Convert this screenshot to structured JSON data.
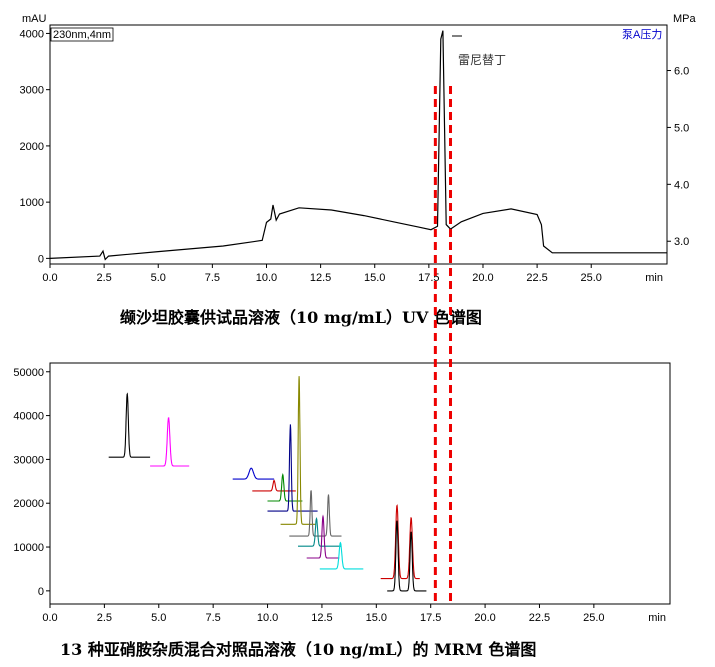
{
  "chart_data": [
    {
      "type": "line",
      "y_unit": "mAU",
      "y2_unit": "MPa",
      "x_unit": "min",
      "detector_label": "230nm,4nm",
      "pressure_label": "泵A压力",
      "peak_label": "雷尼替丁",
      "caption": "缬沙坦胶囊供试品溶液（10 mg/mL）UV 色谱图",
      "xlim": [
        0,
        28.5
      ],
      "ylim": [
        -100,
        4150
      ],
      "y2lim": [
        2.6,
        6.8
      ],
      "x_ticks": [
        "0.0",
        "2.5",
        "5.0",
        "7.5",
        "10.0",
        "12.5",
        "15.0",
        "17.5",
        "20.0",
        "22.5",
        "25.0"
      ],
      "y_ticks": [
        "0",
        "1000",
        "2000",
        "3000",
        "4000"
      ],
      "y2_ticks": [
        "3.0",
        "4.0",
        "5.0",
        "6.0"
      ],
      "series": [
        {
          "x": [
            0,
            2.3,
            2.45,
            2.55,
            2.7,
            5,
            8,
            9.8,
            10.0,
            10.2,
            10.3,
            10.45,
            10.6,
            11.5,
            13,
            14.5,
            16,
            17,
            17.6,
            17.9,
            18.05,
            18.15,
            18.3,
            18.5,
            18.65,
            19,
            20,
            21.3,
            22.5,
            22.7,
            22.8,
            23.2,
            28.5
          ],
          "y": [
            0,
            40,
            130,
            -20,
            40,
            120,
            220,
            320,
            640,
            700,
            950,
            680,
            790,
            900,
            860,
            760,
            640,
            560,
            510,
            570,
            3900,
            4050,
            600,
            520,
            560,
            650,
            800,
            880,
            780,
            600,
            220,
            100,
            100
          ],
          "color": "#000000"
        }
      ],
      "markers": [
        17.8,
        18.5
      ]
    },
    {
      "type": "line",
      "caption": "13 种亚硝胺杂质混合对照品溶液（10 ng/mL）的 MRM 色谱图",
      "xlim": [
        0,
        28.5
      ],
      "ylim": [
        -3000,
        52000
      ],
      "x_ticks": [
        "0.0",
        "2.5",
        "5.0",
        "7.5",
        "10.0",
        "12.5",
        "15.0",
        "17.5",
        "20.0",
        "22.5",
        "25.0"
      ],
      "x_unit": "min",
      "y_ticks": [
        "0",
        "10000",
        "20000",
        "30000",
        "40000",
        "50000"
      ],
      "series": [
        {
          "color": "#000000",
          "base": 30500,
          "start": 2.7,
          "end": 4.6,
          "peaks": [
            [
              3.55,
              45000,
              0.05
            ]
          ]
        },
        {
          "color": "#ff00ff",
          "base": 28500,
          "start": 4.6,
          "end": 6.4,
          "peaks": [
            [
              5.45,
              39500,
              0.06
            ]
          ]
        },
        {
          "color": "#0000cc",
          "base": 25500,
          "start": 8.4,
          "end": 10.3,
          "peaks": [
            [
              9.25,
              28000,
              0.1
            ]
          ]
        },
        {
          "color": "#cc0000",
          "base": 22800,
          "start": 9.3,
          "end": 11.3,
          "peaks": [
            [
              10.3,
              25200,
              0.05
            ]
          ]
        },
        {
          "color": "#008800",
          "base": 20500,
          "start": 10.0,
          "end": 11.6,
          "peaks": [
            [
              10.7,
              26500,
              0.05
            ]
          ]
        },
        {
          "color": "#000088",
          "base": 18200,
          "start": 10.0,
          "end": 12.3,
          "peaks": [
            [
              11.05,
              38000,
              0.04
            ]
          ]
        },
        {
          "color": "#888800",
          "base": 15200,
          "start": 10.6,
          "end": 12.2,
          "peaks": [
            [
              11.45,
              49000,
              0.04
            ]
          ]
        },
        {
          "color": "#666666",
          "base": 12500,
          "start": 11.0,
          "end": 13.4,
          "peaks": [
            [
              12.0,
              23000,
              0.04
            ],
            [
              12.8,
              22000,
              0.04
            ]
          ]
        },
        {
          "color": "#008888",
          "base": 10200,
          "start": 11.4,
          "end": 13.4,
          "peaks": [
            [
              12.25,
              16500,
              0.05
            ]
          ]
        },
        {
          "color": "#880088",
          "base": 7500,
          "start": 11.8,
          "end": 13.3,
          "peaks": [
            [
              12.55,
              17000,
              0.05
            ]
          ]
        },
        {
          "color": "#00dddd",
          "base": 5000,
          "start": 12.4,
          "end": 14.4,
          "peaks": [
            [
              13.35,
              11000,
              0.06
            ]
          ]
        },
        {
          "color": "#cc0000",
          "base": 2800,
          "start": 15.2,
          "end": 17.0,
          "peaks": [
            [
              15.95,
              19500,
              0.06
            ],
            [
              16.6,
              16700,
              0.06
            ]
          ]
        },
        {
          "color": "#000000",
          "base": 0,
          "start": 15.5,
          "end": 17.3,
          "peaks": [
            [
              15.95,
              16000,
              0.05
            ],
            [
              16.6,
              13500,
              0.05
            ]
          ]
        }
      ]
    }
  ]
}
